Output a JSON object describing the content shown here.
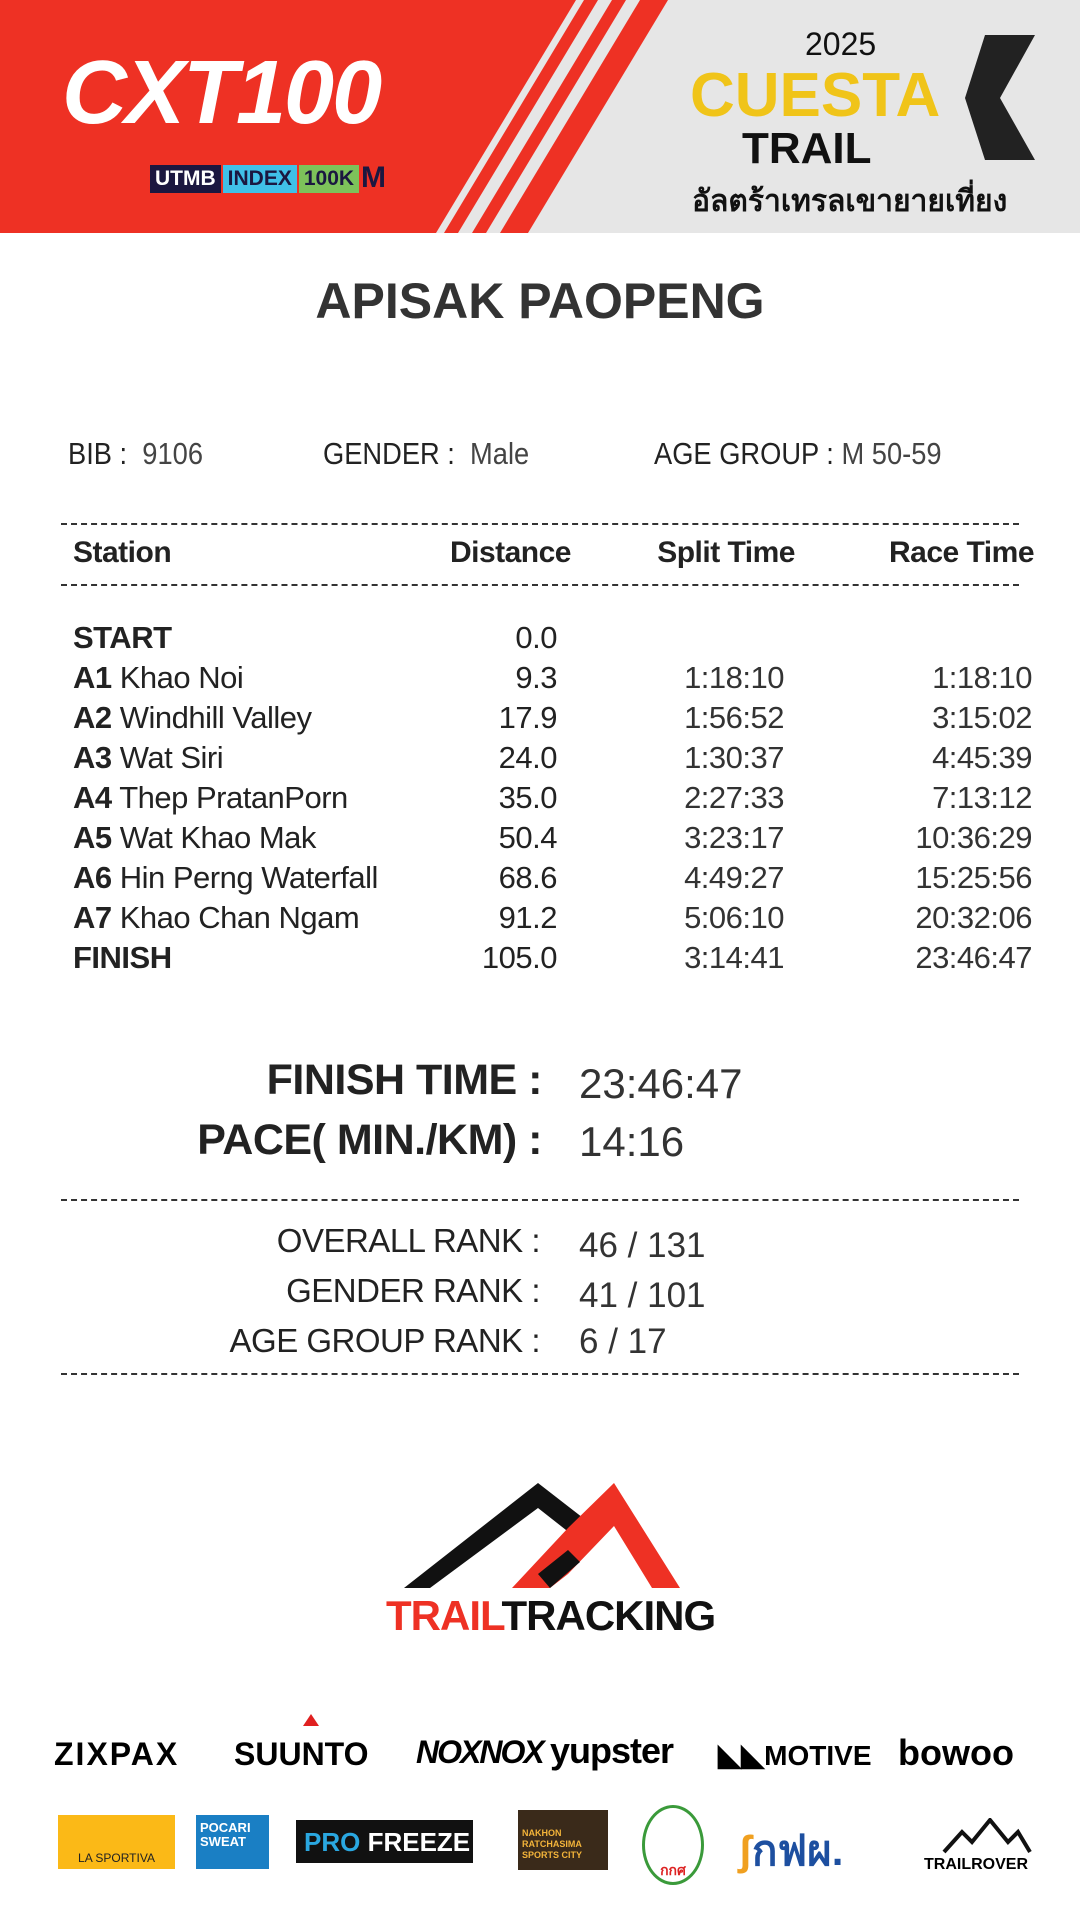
{
  "header": {
    "left_logo": "CXT100",
    "badges": [
      "UTMB",
      "INDEX",
      "100K",
      "M"
    ],
    "year": "2025",
    "event_word1": "CUESTA",
    "event_word2": "TRAIL",
    "event_thai": "อัลตร้าเทรลเขายายเที่ยง",
    "colors": {
      "red": "#ee3124",
      "yellow": "#f0c419",
      "gray": "#e6e6e6"
    }
  },
  "runner": {
    "name": "APISAK  PAOPENG",
    "bib_label": "BIB :",
    "bib": "9106",
    "gender_label": "GENDER  :",
    "gender": "Male",
    "age_group_label": "AGE GROUP  :",
    "age_group": "M 50-59"
  },
  "table": {
    "headers": [
      "Station",
      "Distance",
      "Split Time",
      "Race Time"
    ],
    "rows": [
      {
        "code": "START",
        "name": "",
        "distance": "0.0",
        "split": "",
        "race": ""
      },
      {
        "code": "A1",
        "name": " Khao Noi",
        "distance": "9.3",
        "split": "1:18:10",
        "race": "1:18:10"
      },
      {
        "code": "A2",
        "name": " Windhill Valley",
        "distance": "17.9",
        "split": "1:56:52",
        "race": "3:15:02"
      },
      {
        "code": "A3",
        "name": " Wat Siri",
        "distance": "24.0",
        "split": "1:30:37",
        "race": "4:45:39"
      },
      {
        "code": "A4",
        "name": " Thep PratanPorn",
        "distance": "35.0",
        "split": "2:27:33",
        "race": "7:13:12"
      },
      {
        "code": "A5",
        "name": " Wat Khao Mak",
        "distance": "50.4",
        "split": "3:23:17",
        "race": "10:36:29"
      },
      {
        "code": "A6",
        "name": " Hin Perng Waterfall",
        "distance": "68.6",
        "split": "4:49:27",
        "race": "15:25:56"
      },
      {
        "code": "A7",
        "name": " Khao Chan Ngam",
        "distance": "91.2",
        "split": "5:06:10",
        "race": "20:32:06"
      },
      {
        "code": "FINISH",
        "name": "",
        "distance": "105.0",
        "split": "3:14:41",
        "race": "23:46:47"
      }
    ]
  },
  "summary": {
    "finish_label": "FINISH TIME :",
    "finish": "23:46:47",
    "pace_label": "PACE( MIN./KM) :",
    "pace": "14:16"
  },
  "ranks": {
    "overall_label": "OVERALL RANK  :",
    "overall": "46 / 131",
    "gender_label": "GENDER RANK  :",
    "gender": "41 / 101",
    "age_label": "AGE GROUP RANK :",
    "age": "6 / 17"
  },
  "footer": {
    "logo_red": "TRAIL",
    "logo_black": "TRACKING",
    "sponsors_row1": [
      "ZIXPAX",
      "SUUNTO",
      "NOXNOX",
      "yupster",
      "MOTIVE",
      "bowoo"
    ],
    "sponsors_row2": [
      "LA SPORTIVA",
      "POCARI SWEAT",
      "PRO",
      "FREEZE",
      "NAKHON RATCHASIMA SPORTS CITY",
      "กกศ",
      "กฟผ.",
      "TRAILROVER"
    ]
  }
}
